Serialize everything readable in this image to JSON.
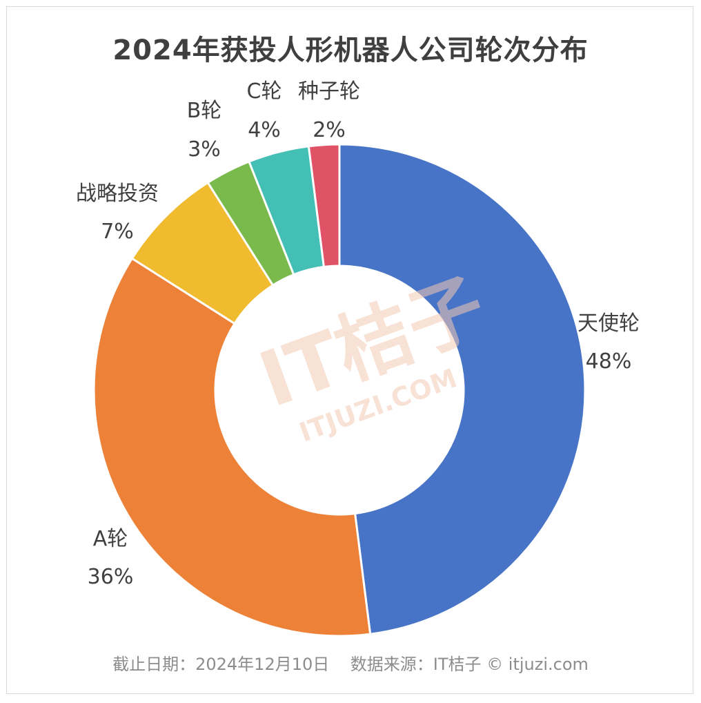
{
  "title": "2024年获投人形机器人公司轮次分布",
  "footer": {
    "date": "截止日期：2024年12月10日",
    "source": "数据来源：IT桔子 © itjuzi.com"
  },
  "watermark": {
    "brand": "IT桔子",
    "url": "ITJUZI.COM"
  },
  "chart_data": {
    "type": "pie",
    "donut": true,
    "title": "2024年获投人形机器人公司轮次分布",
    "slices": [
      {
        "label": "天使轮",
        "value": 48,
        "value_label": "48%",
        "color": "#4774c6"
      },
      {
        "label": "A轮",
        "value": 36,
        "value_label": "36%",
        "color": "#ed8138"
      },
      {
        "label": "战略投资",
        "value": 7,
        "value_label": "7%",
        "color": "#f0bb2f"
      },
      {
        "label": "B轮",
        "value": 3,
        "value_label": "3%",
        "color": "#7aba4c"
      },
      {
        "label": "C轮",
        "value": 4,
        "value_label": "4%",
        "color": "#43bfb5"
      },
      {
        "label": "种子轮",
        "value": 2,
        "value_label": "2%",
        "color": "#e05367"
      }
    ],
    "legend": "none"
  }
}
